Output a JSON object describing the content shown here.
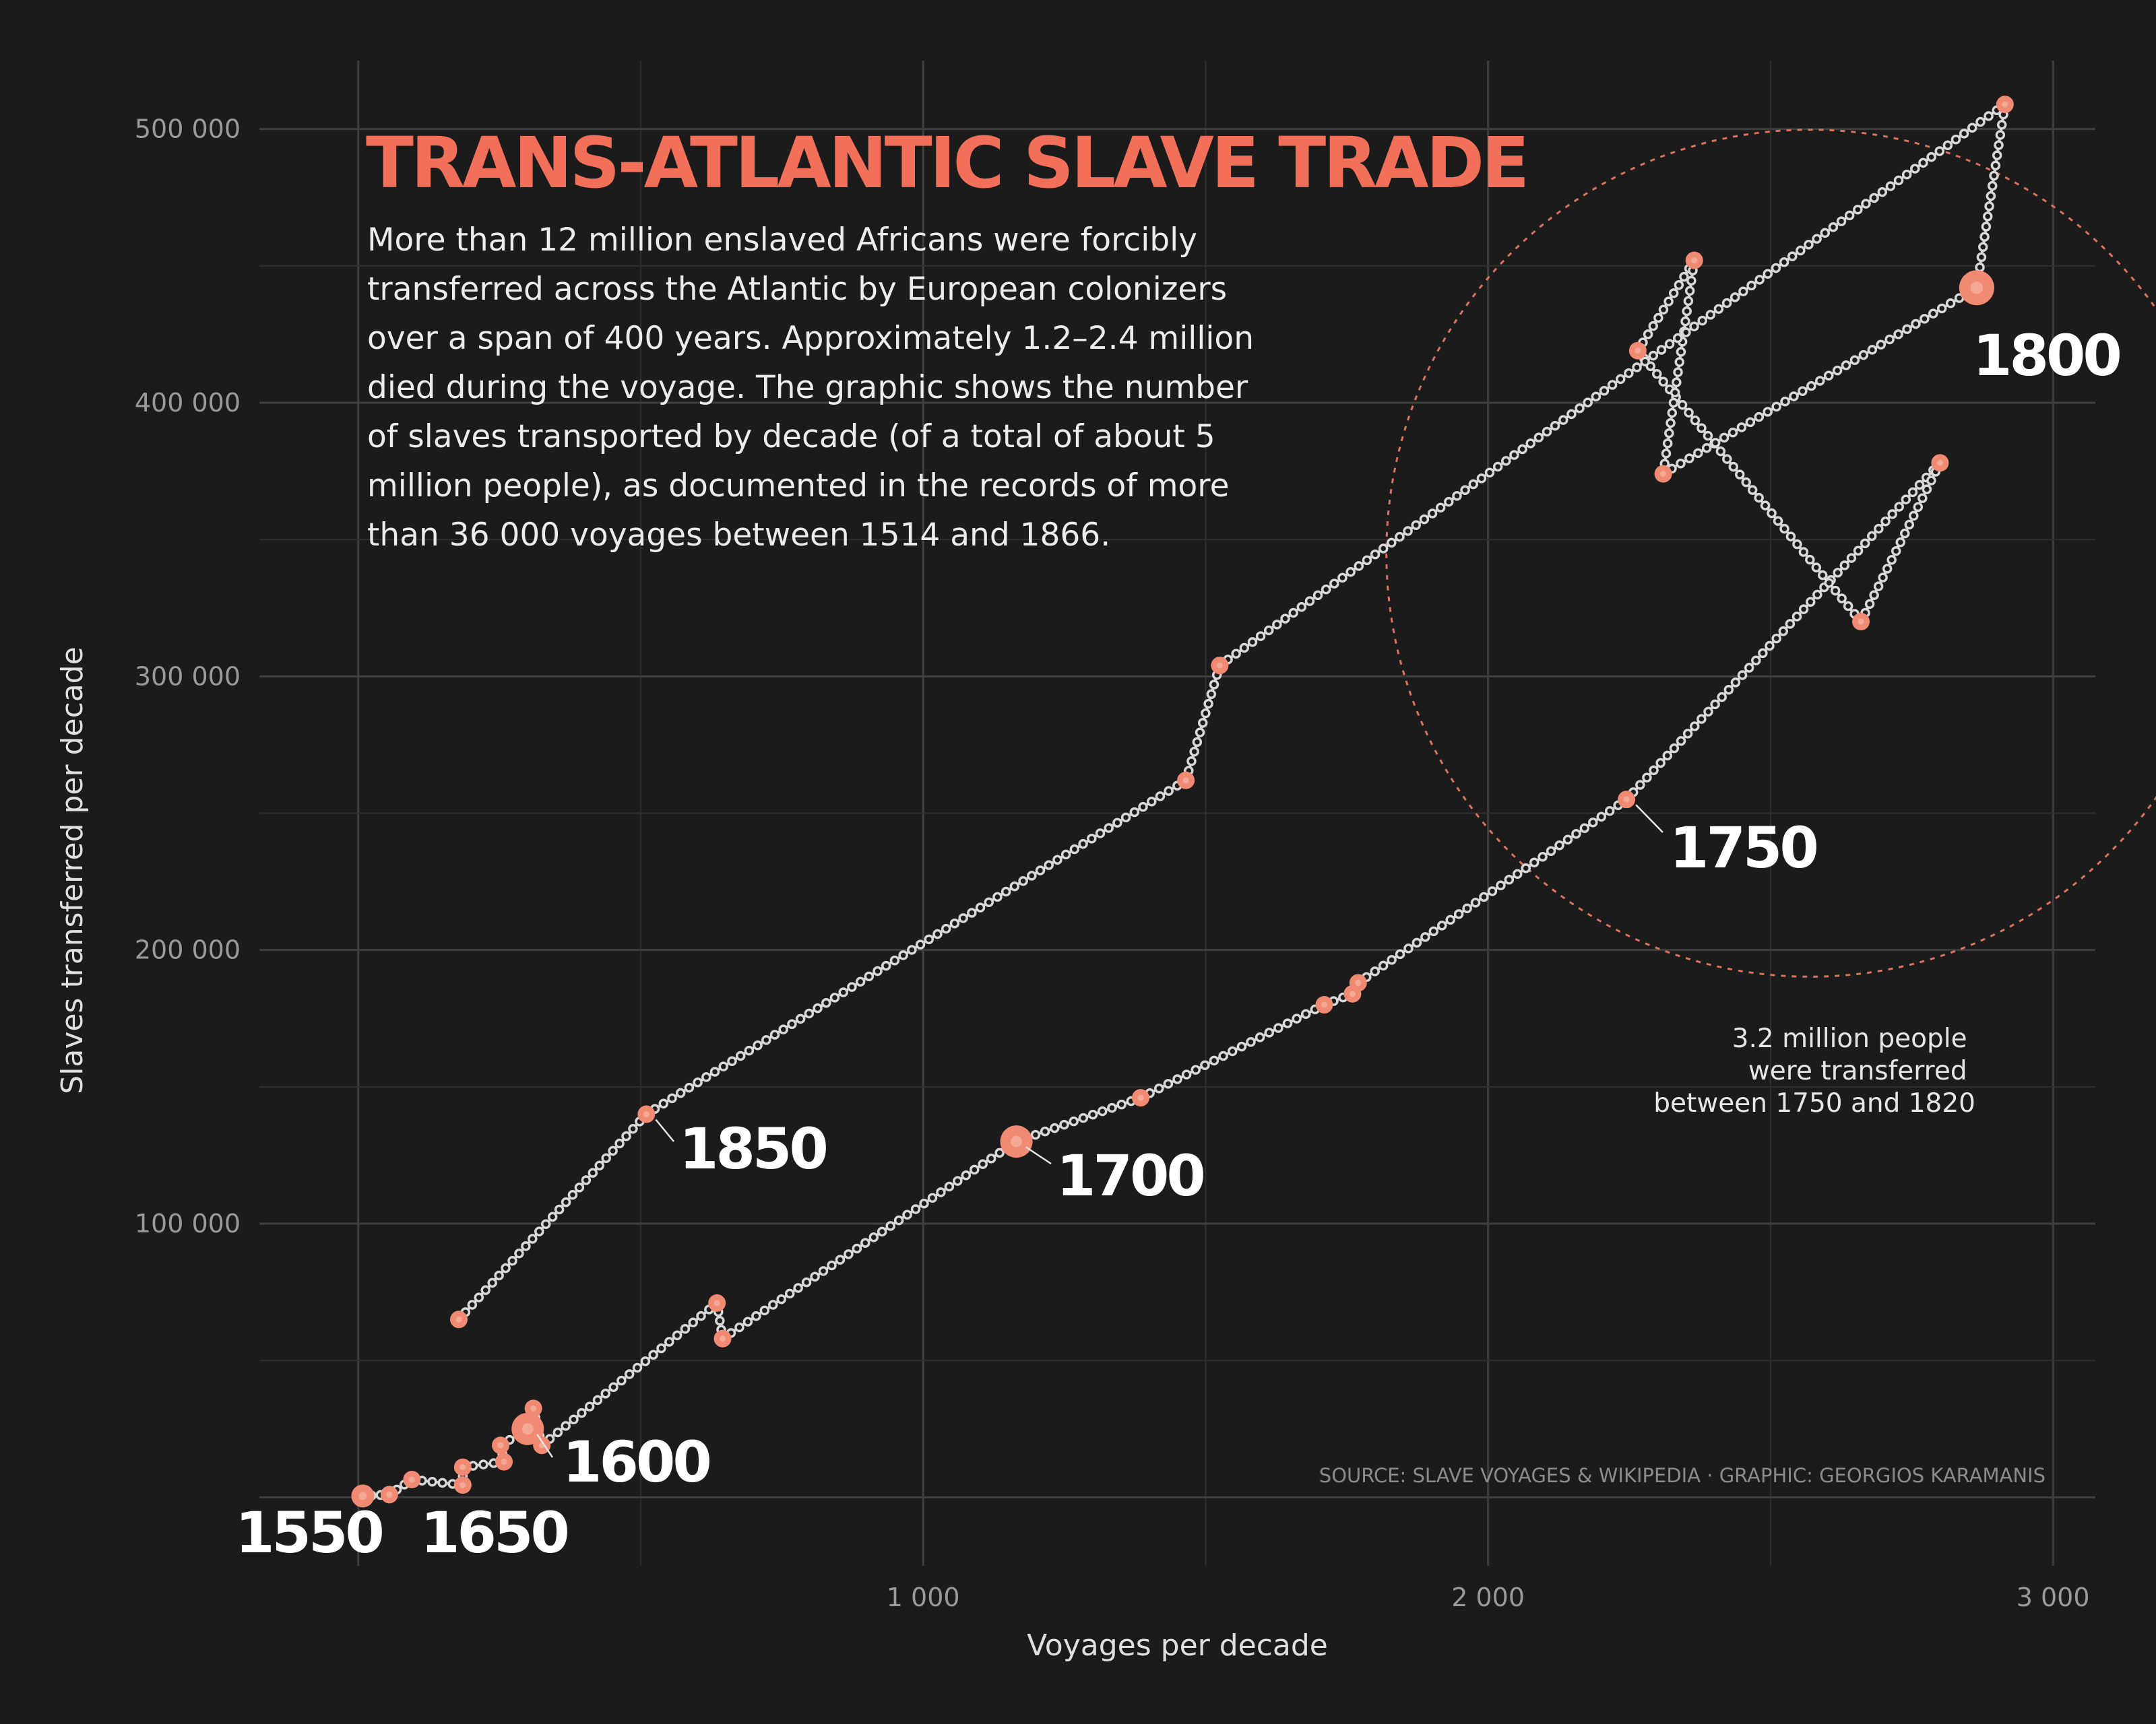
{
  "chart_data": {
    "type": "scatter",
    "title": "TRANS-ATLANTIC SLAVE TRADE",
    "subtitle_lines": [
      "More than 12 million enslaved Africans were forcibly",
      "transferred across the Atlantic by European colonizers",
      "over a span of 400 years. Approximately 1.2–2.4 million",
      "died during the voyage. The graphic shows the number",
      "of slaves transported by decade (of a total of about 5",
      "million people), as documented in the records of more",
      "than 36 000 voyages between 1514 and 1866."
    ],
    "xlabel": "Voyages per decade",
    "ylabel": "Slaves transferred per decade",
    "xlim": [
      -175,
      3075
    ],
    "ylim": [
      -25000,
      525000
    ],
    "x_ticks": [
      1000,
      2000,
      3000
    ],
    "x_tick_labels": [
      "1 000",
      "2 000",
      "3 000"
    ],
    "y_ticks": [
      100000,
      200000,
      300000,
      400000,
      500000
    ],
    "y_tick_labels": [
      "100 000",
      "200 000",
      "300 000",
      "400 000",
      "500 000"
    ],
    "grid": true,
    "annotation_lines": [
      "3.2 million people",
      "were transferred",
      "between 1750 and 1820"
    ],
    "caption": "SOURCE: SLAVE VOYAGES & WIKIPEDIA · GRAPHIC: GEORGIOS KARAMANIS",
    "highlight_circle": {
      "center": [
        2570,
        345000
      ],
      "radius_x_units": 750
    },
    "decade_labels": [
      {
        "text": "1550"
      },
      {
        "text": "1600"
      },
      {
        "text": "1650"
      },
      {
        "text": "1700"
      },
      {
        "text": "1750"
      },
      {
        "text": "1800"
      },
      {
        "text": "1850"
      }
    ],
    "points": [
      {
        "x": 8,
        "y": 500
      },
      {
        "x": 55,
        "y": 1000
      },
      {
        "x": 95,
        "y": 6500
      },
      {
        "x": 185,
        "y": 4500
      },
      {
        "x": 185,
        "y": 11000
      },
      {
        "x": 258,
        "y": 13000
      },
      {
        "x": 252,
        "y": 19000
      },
      {
        "x": 300,
        "y": 25000
      },
      {
        "x": 310,
        "y": 32500
      },
      {
        "x": 325,
        "y": 19000
      },
      {
        "x": 635,
        "y": 71000
      },
      {
        "x": 645,
        "y": 58000
      },
      {
        "x": 1165,
        "y": 130000
      },
      {
        "x": 1385,
        "y": 146000
      },
      {
        "x": 1710,
        "y": 180000
      },
      {
        "x": 1760,
        "y": 184000
      },
      {
        "x": 1770,
        "y": 188000
      },
      {
        "x": 2245,
        "y": 255000
      },
      {
        "x": 2800,
        "y": 378000
      },
      {
        "x": 2660,
        "y": 320000
      },
      {
        "x": 2265,
        "y": 419000
      },
      {
        "x": 2365,
        "y": 452000
      },
      {
        "x": 2310,
        "y": 374000
      },
      {
        "x": 2865,
        "y": 442000
      },
      {
        "x": 2915,
        "y": 509000
      },
      {
        "x": 1525,
        "y": 304000
      },
      {
        "x": 1465,
        "y": 262000
      },
      {
        "x": 510,
        "y": 140000
      },
      {
        "x": 178,
        "y": 65000
      }
    ]
  }
}
